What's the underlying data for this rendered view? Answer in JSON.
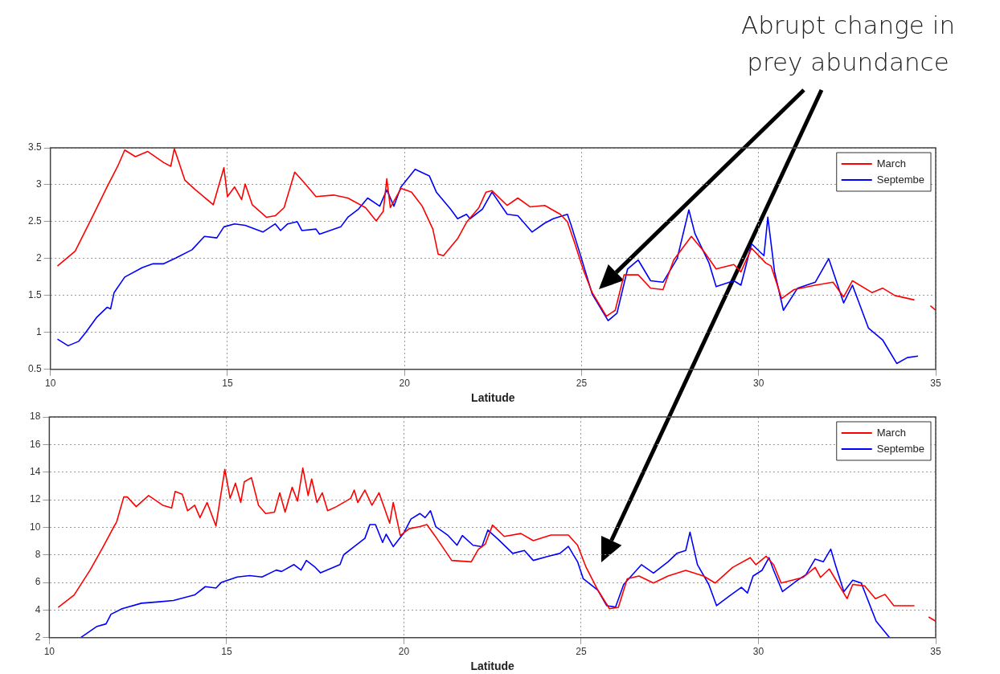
{
  "chart_data": [
    {
      "type": "line",
      "xlabel": "Latitude",
      "xlim": [
        10,
        35
      ],
      "xticks": [
        10,
        15,
        20,
        25,
        30,
        35
      ],
      "ylim": [
        0.5,
        3.5
      ],
      "yticks": [
        0.5,
        1,
        1.5,
        2,
        2.5,
        3,
        3.5
      ],
      "grid": true,
      "legend": "top right",
      "annotations": [
        "Abrupt change in prey abundance"
      ],
      "series": [
        {
          "name": "March",
          "color": "#ff0000",
          "x": [
            10.2,
            10.7,
            11.2,
            11.6,
            11.9,
            12.1,
            12.4,
            12.75,
            13.2,
            13.4,
            13.5,
            13.8,
            14.1,
            14.6,
            14.9,
            15.0,
            15.2,
            15.4,
            15.5,
            15.7,
            16.1,
            16.35,
            16.6,
            16.9,
            17.2,
            17.5,
            18.0,
            18.4,
            18.9,
            19.2,
            19.4,
            19.5,
            19.6,
            19.9,
            20.2,
            20.5,
            20.8,
            20.95,
            21.1,
            21.5,
            21.75,
            22.1,
            22.3,
            22.47,
            22.9,
            23.2,
            23.55,
            23.96,
            24.4,
            24.6,
            24.8,
            25.04,
            25.3,
            25.7,
            25.95,
            26.2,
            26.6,
            26.95,
            27.3,
            27.6,
            28.1,
            28.45,
            28.8,
            29.3,
            29.5,
            29.8,
            30.2,
            30.35,
            30.65,
            31.0,
            31.6,
            32.1,
            32.4,
            32.65,
            33.2,
            33.5,
            33.85,
            34.4,
            34.6,
            34.85,
            35
          ],
          "values": [
            1.9,
            2.1,
            2.58,
            2.97,
            3.25,
            3.47,
            3.38,
            3.45,
            3.3,
            3.25,
            3.49,
            3.06,
            2.93,
            2.73,
            3.23,
            2.84,
            2.97,
            2.8,
            3.01,
            2.73,
            2.56,
            2.58,
            2.69,
            3.17,
            3.01,
            2.84,
            2.86,
            2.82,
            2.69,
            2.51,
            2.64,
            3.08,
            2.69,
            2.95,
            2.9,
            2.71,
            2.4,
            2.06,
            2.04,
            2.27,
            2.49,
            2.69,
            2.9,
            2.92,
            2.72,
            2.82,
            2.7,
            2.72,
            2.6,
            2.5,
            2.22,
            1.86,
            1.54,
            1.22,
            1.3,
            1.78,
            1.78,
            1.6,
            1.58,
            1.98,
            2.3,
            2.1,
            1.86,
            1.92,
            1.82,
            2.14,
            1.94,
            1.9,
            1.46,
            1.58,
            1.64,
            1.68,
            1.48,
            1.7,
            1.54,
            1.6,
            1.5,
            1.44,
            null,
            1.36,
            1.3
          ]
        },
        {
          "name": "Septembe",
          "color": "#0000ff",
          "x": [
            10.2,
            10.5,
            10.8,
            11.0,
            11.3,
            11.6,
            11.7,
            11.8,
            12.1,
            12.6,
            12.9,
            13.2,
            13.55,
            14.0,
            14.35,
            14.7,
            14.9,
            15.2,
            15.5,
            16.0,
            16.35,
            16.5,
            16.7,
            16.97,
            17.1,
            17.5,
            17.6,
            18.2,
            18.4,
            18.7,
            18.96,
            19.3,
            19.5,
            19.7,
            19.9,
            20.3,
            20.7,
            20.9,
            21.3,
            21.5,
            21.75,
            21.85,
            22.2,
            22.47,
            22.9,
            23.2,
            23.6,
            23.96,
            24.2,
            24.6,
            24.7,
            24.96,
            25.3,
            25.75,
            26.0,
            26.3,
            26.6,
            26.95,
            27.3,
            27.7,
            28.03,
            28.2,
            28.6,
            28.8,
            29.3,
            29.5,
            29.8,
            30.15,
            30.26,
            30.45,
            30.7,
            31.1,
            31.6,
            31.98,
            32.4,
            32.65,
            33.1,
            33.5,
            33.9,
            34.2,
            34.5
          ],
          "values": [
            0.91,
            0.82,
            0.88,
            1.0,
            1.2,
            1.34,
            1.32,
            1.54,
            1.75,
            1.88,
            1.93,
            1.93,
            2.01,
            2.12,
            2.3,
            2.28,
            2.43,
            2.47,
            2.45,
            2.36,
            2.47,
            2.38,
            2.47,
            2.5,
            2.38,
            2.4,
            2.33,
            2.43,
            2.56,
            2.67,
            2.82,
            2.71,
            2.93,
            2.71,
            2.97,
            3.21,
            3.12,
            2.9,
            2.67,
            2.54,
            2.6,
            2.54,
            2.67,
            2.9,
            2.6,
            2.58,
            2.36,
            2.48,
            2.54,
            2.6,
            2.46,
            2.06,
            1.52,
            1.16,
            1.26,
            1.86,
            1.98,
            1.7,
            1.68,
            2.0,
            2.66,
            2.34,
            1.94,
            1.62,
            1.7,
            1.64,
            2.2,
            2.04,
            2.56,
            1.82,
            1.3,
            1.6,
            1.68,
            2.0,
            1.4,
            1.64,
            1.06,
            0.9,
            0.58,
            0.66,
            0.68
          ]
        }
      ]
    },
    {
      "type": "line",
      "xlabel": "Latitude",
      "xlim": [
        10,
        35
      ],
      "xticks": [
        10,
        15,
        20,
        25,
        30,
        35
      ],
      "ylim": [
        2,
        18
      ],
      "yticks": [
        2,
        4,
        6,
        8,
        10,
        12,
        14,
        16,
        18
      ],
      "grid": true,
      "legend": "top right",
      "series": [
        {
          "name": "March",
          "color": "#ff0000",
          "x": [
            10.25,
            10.7,
            11.15,
            11.5,
            11.8,
            11.9,
            12.1,
            12.2,
            12.45,
            12.8,
            13.2,
            13.45,
            13.55,
            13.75,
            13.9,
            14.1,
            14.25,
            14.45,
            14.7,
            14.95,
            15.1,
            15.25,
            15.4,
            15.5,
            15.7,
            15.9,
            16.1,
            16.35,
            16.5,
            16.65,
            16.85,
            17.0,
            17.15,
            17.3,
            17.4,
            17.55,
            17.7,
            17.85,
            18.1,
            18.5,
            18.6,
            18.7,
            18.9,
            19.1,
            19.3,
            19.45,
            19.6,
            19.7,
            19.9,
            20.15,
            20.45,
            20.65,
            20.9,
            21.35,
            21.9,
            22.1,
            22.3,
            22.5,
            22.83,
            23.3,
            23.65,
            24.15,
            24.64,
            24.9,
            25.14,
            25.47,
            25.8,
            26.05,
            26.3,
            26.63,
            27.04,
            27.45,
            27.95,
            28.45,
            28.78,
            29.27,
            29.77,
            29.93,
            30.22,
            30.43,
            30.64,
            31.26,
            31.6,
            31.75,
            32.0,
            32.5,
            32.66,
            33.0,
            33.3,
            33.57,
            33.82,
            34.4,
            34.6,
            34.8,
            35
          ],
          "values": [
            4.2,
            5.1,
            6.9,
            8.5,
            9.95,
            10.4,
            12.2,
            12.2,
            11.5,
            12.3,
            11.6,
            11.4,
            12.6,
            12.4,
            11.2,
            11.6,
            10.7,
            11.8,
            10.1,
            14.2,
            12.1,
            13.2,
            11.8,
            13.3,
            13.6,
            11.6,
            11.0,
            11.1,
            12.5,
            11.1,
            12.9,
            11.9,
            14.3,
            12.3,
            13.5,
            11.8,
            12.5,
            11.2,
            11.5,
            12.1,
            12.7,
            11.8,
            12.7,
            11.6,
            12.5,
            11.4,
            10.3,
            11.8,
            9.4,
            9.9,
            10.05,
            10.2,
            9.3,
            7.6,
            7.5,
            8.4,
            8.8,
            10.16,
            9.34,
            9.55,
            9.03,
            9.44,
            9.44,
            8.7,
            7.1,
            5.45,
            4.1,
            4.2,
            6.27,
            6.47,
            5.96,
            6.47,
            6.88,
            6.47,
            5.96,
            7.09,
            7.8,
            7.29,
            7.9,
            7.29,
            5.96,
            6.37,
            7.09,
            6.37,
            6.98,
            4.83,
            5.86,
            5.75,
            4.83,
            5.14,
            4.32,
            4.32,
            null,
            3.5,
            3.2
          ]
        },
        {
          "name": "Septembe",
          "color": "#0000ff",
          "x": [
            10.88,
            11.33,
            11.6,
            11.74,
            12.05,
            12.6,
            13.1,
            13.5,
            14.1,
            14.4,
            14.7,
            14.85,
            15.3,
            15.65,
            16.0,
            16.4,
            16.55,
            16.9,
            17.1,
            17.25,
            17.5,
            17.65,
            18.2,
            18.3,
            18.6,
            18.9,
            19.04,
            19.2,
            19.4,
            19.5,
            19.7,
            20.0,
            20.2,
            20.45,
            20.6,
            20.75,
            20.9,
            21.25,
            21.5,
            21.65,
            21.95,
            22.2,
            22.37,
            22.66,
            23.07,
            23.4,
            23.65,
            24.07,
            24.4,
            24.64,
            24.9,
            25.06,
            25.47,
            25.72,
            25.97,
            26.2,
            26.7,
            27.04,
            27.45,
            27.7,
            27.95,
            28.07,
            28.28,
            28.6,
            28.82,
            29.19,
            29.52,
            29.69,
            29.85,
            30.1,
            30.3,
            30.43,
            30.68,
            31.1,
            31.34,
            31.6,
            31.83,
            32.04,
            32.17,
            32.41,
            32.66,
            32.9,
            33.32,
            33.7
          ],
          "values": [
            2.0,
            2.8,
            3.0,
            3.7,
            4.1,
            4.5,
            4.6,
            4.7,
            5.1,
            5.7,
            5.6,
            6.0,
            6.4,
            6.5,
            6.4,
            6.9,
            6.8,
            7.3,
            6.9,
            7.6,
            7.1,
            6.7,
            7.3,
            8.0,
            8.6,
            9.2,
            10.2,
            10.2,
            8.9,
            9.5,
            8.6,
            9.6,
            10.6,
            11.0,
            10.7,
            11.2,
            10.05,
            9.4,
            8.7,
            9.4,
            8.7,
            8.6,
            9.8,
            9.13,
            8.11,
            8.32,
            7.6,
            7.9,
            8.11,
            8.62,
            7.5,
            6.27,
            5.45,
            4.32,
            4.22,
            5.86,
            7.29,
            6.68,
            7.5,
            8.11,
            8.32,
            9.65,
            7.29,
            5.86,
            4.32,
            5.04,
            5.65,
            5.24,
            6.47,
            6.88,
            7.8,
            6.88,
            5.34,
            6.16,
            6.57,
            7.7,
            7.5,
            8.42,
            7.29,
            5.34,
            6.16,
            5.96,
            3.2,
            2.0
          ]
        }
      ]
    }
  ]
}
